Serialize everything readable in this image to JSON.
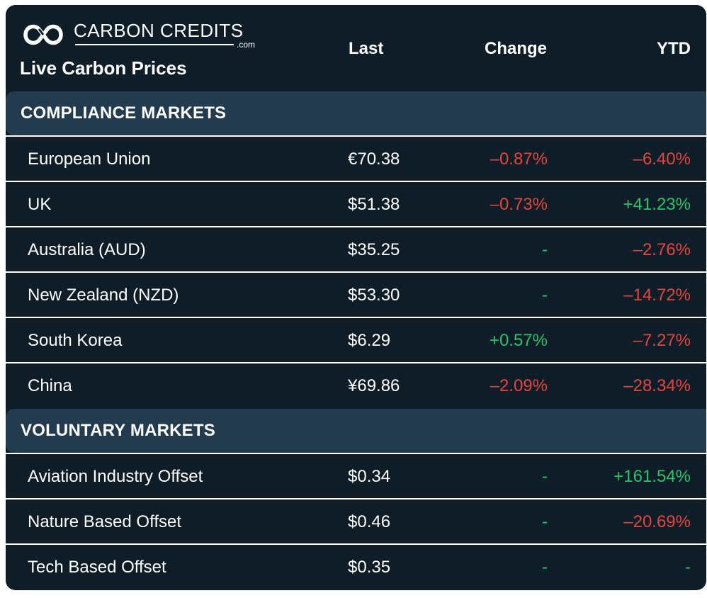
{
  "brand": {
    "name": "CARBON CREDITS",
    "domain": ".com",
    "subtitle": "Live Carbon Prices"
  },
  "columns": {
    "last": "Last",
    "change": "Change",
    "ytd": "YTD"
  },
  "colors": {
    "background": "#0f1d28",
    "section": "#233b4e",
    "negative": "#e0473e",
    "positive": "#27c46a"
  },
  "sections": [
    {
      "label": "COMPLIANCE MARKETS",
      "rows": [
        {
          "name": "European Union",
          "last": "€70.38",
          "change": "–0.87%",
          "change_dir": "neg",
          "ytd": "–6.40%",
          "ytd_dir": "neg"
        },
        {
          "name": "UK",
          "last": "$51.38",
          "change": "–0.73%",
          "change_dir": "neg",
          "ytd": "+41.23%",
          "ytd_dir": "pos"
        },
        {
          "name": "Australia (AUD)",
          "last": "$35.25",
          "change": "-",
          "change_dir": "flat",
          "ytd": "–2.76%",
          "ytd_dir": "neg"
        },
        {
          "name": "New Zealand (NZD)",
          "last": "$53.30",
          "change": "-",
          "change_dir": "flat",
          "ytd": "–14.72%",
          "ytd_dir": "neg"
        },
        {
          "name": "South Korea",
          "last": "$6.29",
          "change": "+0.57%",
          "change_dir": "pos",
          "ytd": "–7.27%",
          "ytd_dir": "neg"
        },
        {
          "name": "China",
          "last": "¥69.86",
          "change": "–2.09%",
          "change_dir": "neg",
          "ytd": "–28.34%",
          "ytd_dir": "neg"
        }
      ]
    },
    {
      "label": "VOLUNTARY MARKETS",
      "rows": [
        {
          "name": "Aviation Industry Offset",
          "last": "$0.34",
          "change": "-",
          "change_dir": "flat",
          "ytd": "+161.54%",
          "ytd_dir": "pos"
        },
        {
          "name": "Nature Based Offset",
          "last": "$0.46",
          "change": "-",
          "change_dir": "flat",
          "ytd": "–20.69%",
          "ytd_dir": "neg"
        },
        {
          "name": "Tech Based Offset",
          "last": "$0.35",
          "change": "-",
          "change_dir": "flat",
          "ytd": "-",
          "ytd_dir": "flat"
        }
      ]
    }
  ]
}
